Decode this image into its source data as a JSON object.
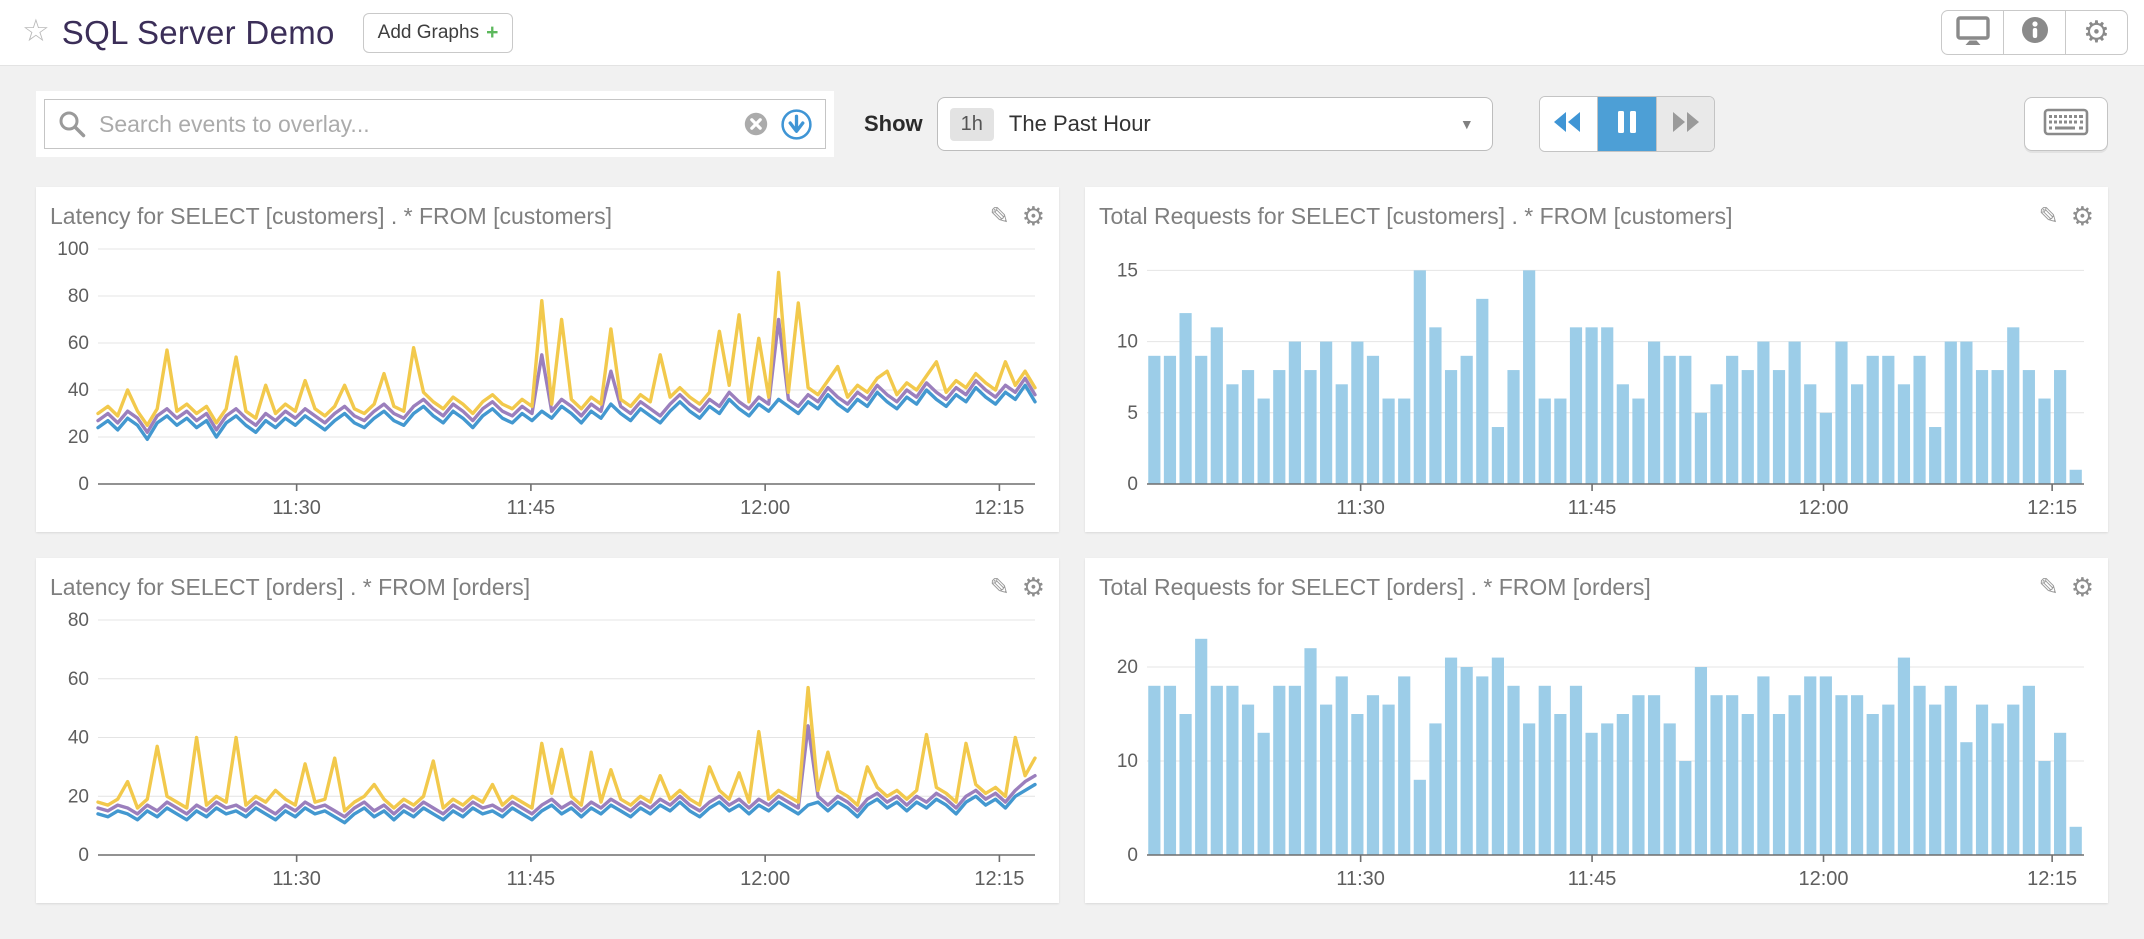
{
  "header": {
    "title": "SQL Server Demo",
    "add_graphs_label": "Add Graphs",
    "add_graphs_plus": "+"
  },
  "toolbar": {
    "search_placeholder": "Search events to overlay...",
    "show_label": "Show",
    "timeframe_badge": "1h",
    "timeframe_value": "The Past Hour"
  },
  "icons": {
    "star": "☆",
    "gear": "⚙",
    "pencil": "✎",
    "dropdown_arrow": "▼"
  },
  "colors": {
    "title_text": "#3B2E58",
    "bar_fill": "#9CCDE8",
    "line_blue": "#4398D0",
    "line_purple": "#9B7FBD",
    "line_yellow": "#F2C94C",
    "playback_active": "#4D9FD6"
  },
  "chart_data": [
    {
      "type": "line",
      "title": "Latency for SELECT [customers] . * FROM [customers]",
      "ylim": [
        0,
        100
      ],
      "yticks": [
        0,
        20,
        40,
        60,
        80,
        100
      ],
      "xticks": [
        {
          "label": "11:30",
          "f": 0.212
        },
        {
          "label": "11:45",
          "f": 0.462
        },
        {
          "label": "12:00",
          "f": 0.712
        },
        {
          "label": "12:15",
          "f": 0.962
        }
      ],
      "series": [
        {
          "name": "blue",
          "color": "#4398D0",
          "values": [
            24,
            27,
            23,
            28,
            25,
            19,
            26,
            29,
            25,
            28,
            24,
            27,
            20,
            26,
            29,
            25,
            22,
            27,
            24,
            28,
            25,
            29,
            26,
            23,
            27,
            30,
            26,
            24,
            28,
            31,
            27,
            25,
            30,
            33,
            29,
            26,
            31,
            28,
            24,
            29,
            32,
            28,
            26,
            30,
            27,
            31,
            28,
            33,
            30,
            26,
            31,
            28,
            34,
            30,
            27,
            32,
            29,
            26,
            31,
            35,
            31,
            28,
            33,
            30,
            36,
            32,
            29,
            34,
            31,
            36,
            33,
            30,
            35,
            32,
            38,
            34,
            31,
            36,
            33,
            39,
            35,
            32,
            37,
            34,
            40,
            36,
            33,
            38,
            35,
            41,
            37,
            34,
            39,
            36,
            42,
            35
          ]
        },
        {
          "name": "purple",
          "color": "#9B7FBD",
          "values": [
            27,
            30,
            26,
            31,
            28,
            22,
            29,
            32,
            28,
            31,
            27,
            30,
            23,
            29,
            32,
            28,
            25,
            30,
            27,
            31,
            28,
            32,
            29,
            26,
            30,
            33,
            29,
            27,
            31,
            34,
            30,
            28,
            33,
            36,
            32,
            29,
            34,
            31,
            27,
            32,
            35,
            31,
            29,
            33,
            30,
            55,
            31,
            36,
            33,
            29,
            34,
            31,
            48,
            33,
            30,
            35,
            32,
            29,
            34,
            38,
            34,
            31,
            36,
            33,
            39,
            35,
            32,
            37,
            34,
            70,
            36,
            33,
            38,
            35,
            41,
            37,
            34,
            39,
            36,
            42,
            38,
            35,
            40,
            37,
            43,
            39,
            36,
            41,
            38,
            44,
            40,
            37,
            42,
            39,
            45,
            38
          ]
        },
        {
          "name": "yellow",
          "color": "#F2C94C",
          "values": [
            30,
            33,
            29,
            40,
            31,
            25,
            32,
            57,
            31,
            34,
            30,
            33,
            26,
            32,
            54,
            31,
            28,
            42,
            30,
            34,
            31,
            44,
            32,
            29,
            33,
            42,
            32,
            30,
            34,
            47,
            33,
            31,
            58,
            39,
            35,
            32,
            37,
            34,
            30,
            35,
            38,
            34,
            32,
            36,
            33,
            78,
            34,
            70,
            36,
            32,
            37,
            34,
            66,
            36,
            33,
            38,
            35,
            55,
            37,
            41,
            37,
            34,
            39,
            65,
            42,
            72,
            35,
            62,
            37,
            90,
            39,
            77,
            41,
            38,
            44,
            50,
            37,
            42,
            39,
            45,
            48,
            38,
            43,
            40,
            46,
            52,
            39,
            44,
            41,
            47,
            43,
            40,
            52,
            42,
            48,
            41
          ]
        }
      ]
    },
    {
      "type": "bar",
      "title": "Total Requests for SELECT [customers] . * FROM [customers]",
      "ylim": [
        0,
        16.5
      ],
      "yticks": [
        0,
        5,
        10,
        15
      ],
      "xticks": [
        {
          "label": "11:30",
          "f": 0.228
        },
        {
          "label": "11:45",
          "f": 0.475
        },
        {
          "label": "12:00",
          "f": 0.722
        },
        {
          "label": "12:15",
          "f": 0.966
        }
      ],
      "color": "#9CCDE8",
      "values": [
        9,
        9,
        12,
        9,
        11,
        7,
        8,
        6,
        8,
        10,
        8,
        10,
        7,
        10,
        9,
        6,
        6,
        15,
        11,
        8,
        9,
        13,
        4,
        8,
        15,
        6,
        6,
        11,
        11,
        11,
        7,
        6,
        10,
        9,
        9,
        5,
        7,
        9,
        8,
        10,
        8,
        10,
        7,
        5,
        10,
        7,
        9,
        9,
        7,
        9,
        4,
        10,
        10,
        8,
        8,
        11,
        8,
        6,
        8,
        1
      ]
    },
    {
      "type": "line",
      "title": "Latency for SELECT [orders] . * FROM [orders]",
      "ylim": [
        0,
        80
      ],
      "yticks": [
        0,
        20,
        40,
        60,
        80
      ],
      "xticks": [
        {
          "label": "11:30",
          "f": 0.212
        },
        {
          "label": "11:45",
          "f": 0.462
        },
        {
          "label": "12:00",
          "f": 0.712
        },
        {
          "label": "12:15",
          "f": 0.962
        }
      ],
      "series": [
        {
          "name": "blue",
          "color": "#4398D0",
          "values": [
            14,
            13,
            15,
            14,
            12,
            15,
            13,
            16,
            14,
            12,
            15,
            13,
            16,
            14,
            15,
            13,
            16,
            14,
            12,
            15,
            13,
            16,
            14,
            15,
            13,
            11,
            14,
            16,
            13,
            15,
            12,
            15,
            13,
            16,
            14,
            12,
            15,
            13,
            16,
            14,
            15,
            13,
            16,
            14,
            12,
            15,
            17,
            14,
            16,
            13,
            16,
            14,
            17,
            15,
            13,
            16,
            14,
            17,
            15,
            18,
            15,
            13,
            16,
            18,
            15,
            17,
            14,
            17,
            15,
            18,
            16,
            14,
            17,
            18,
            15,
            18,
            16,
            13,
            17,
            19,
            16,
            18,
            15,
            18,
            16,
            19,
            17,
            14,
            18,
            20,
            17,
            19,
            16,
            20,
            22,
            24
          ]
        },
        {
          "name": "purple",
          "color": "#9B7FBD",
          "values": [
            16,
            15,
            17,
            16,
            14,
            17,
            15,
            18,
            16,
            14,
            17,
            15,
            18,
            16,
            17,
            15,
            18,
            16,
            14,
            17,
            15,
            18,
            16,
            17,
            15,
            13,
            16,
            18,
            15,
            17,
            14,
            17,
            15,
            18,
            16,
            14,
            17,
            15,
            18,
            16,
            17,
            15,
            18,
            16,
            14,
            17,
            19,
            16,
            18,
            15,
            18,
            16,
            19,
            17,
            15,
            18,
            16,
            19,
            17,
            20,
            17,
            15,
            18,
            20,
            17,
            19,
            16,
            19,
            17,
            20,
            18,
            16,
            44,
            20,
            17,
            20,
            18,
            15,
            19,
            21,
            18,
            20,
            17,
            20,
            18,
            21,
            19,
            16,
            20,
            22,
            19,
            21,
            18,
            22,
            25,
            27
          ]
        },
        {
          "name": "yellow",
          "color": "#F2C94C",
          "values": [
            18,
            17,
            19,
            25,
            16,
            19,
            37,
            20,
            18,
            16,
            40,
            17,
            20,
            18,
            40,
            17,
            20,
            18,
            22,
            19,
            17,
            31,
            18,
            19,
            33,
            15,
            18,
            20,
            24,
            19,
            16,
            19,
            17,
            20,
            32,
            16,
            19,
            17,
            20,
            18,
            24,
            17,
            20,
            18,
            16,
            38,
            21,
            36,
            20,
            17,
            35,
            18,
            29,
            19,
            17,
            20,
            18,
            27,
            19,
            22,
            19,
            17,
            30,
            22,
            19,
            28,
            18,
            42,
            19,
            22,
            20,
            18,
            57,
            22,
            35,
            22,
            20,
            17,
            30,
            23,
            20,
            22,
            19,
            22,
            41,
            23,
            21,
            18,
            38,
            24,
            21,
            23,
            20,
            40,
            27,
            33
          ]
        }
      ]
    },
    {
      "type": "bar",
      "title": "Total Requests for SELECT [orders] . * FROM [orders]",
      "ylim": [
        0,
        25
      ],
      "yticks": [
        0,
        10,
        20
      ],
      "xticks": [
        {
          "label": "11:30",
          "f": 0.228
        },
        {
          "label": "11:45",
          "f": 0.475
        },
        {
          "label": "12:00",
          "f": 0.722
        },
        {
          "label": "12:15",
          "f": 0.966
        }
      ],
      "color": "#9CCDE8",
      "values": [
        18,
        18,
        15,
        23,
        18,
        18,
        16,
        13,
        18,
        18,
        22,
        16,
        19,
        15,
        17,
        16,
        19,
        8,
        14,
        21,
        20,
        19,
        21,
        18,
        14,
        18,
        15,
        18,
        13,
        14,
        15,
        17,
        17,
        14,
        10,
        20,
        17,
        17,
        15,
        19,
        15,
        17,
        19,
        19,
        17,
        17,
        15,
        16,
        21,
        18,
        16,
        18,
        12,
        16,
        14,
        16,
        18,
        10,
        13,
        3
      ]
    }
  ]
}
